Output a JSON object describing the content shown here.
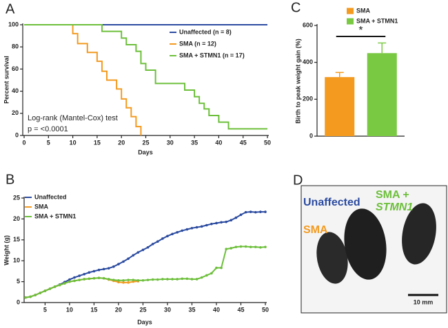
{
  "chart_data": [
    {
      "type": "line",
      "panel": "A",
      "step": true,
      "ylabel": "Percent survival",
      "xlabel": "Days",
      "annotations": [
        "Log-rank (Mantel-Cox) test",
        "p = <0.0001"
      ],
      "xlim": [
        0,
        50
      ],
      "xticks": [
        0,
        5,
        10,
        15,
        20,
        25,
        30,
        35,
        40,
        45,
        50
      ],
      "ylim": [
        0,
        100
      ],
      "yticks": [
        0,
        20,
        40,
        60,
        80,
        100
      ],
      "series": [
        {
          "name": "Unaffected (n = 8)",
          "color": "#2b4ba0",
          "x": [
            0,
            50
          ],
          "values": [
            100,
            100
          ]
        },
        {
          "name": "SMA (n = 12)",
          "color": "#f39a1f",
          "x": [
            0,
            10,
            10,
            11,
            11,
            13,
            13,
            15,
            15,
            16,
            16,
            17,
            17,
            19,
            19,
            20,
            20,
            21,
            21,
            22,
            22,
            23,
            23,
            24,
            24
          ],
          "values": [
            100,
            100,
            92,
            92,
            83,
            83,
            75,
            75,
            67,
            67,
            58,
            58,
            50,
            50,
            42,
            42,
            33,
            33,
            25,
            25,
            17,
            17,
            8,
            8,
            0
          ]
        },
        {
          "name": "SMA + STMN1 (n = 17)",
          "color": "#6cbf3a",
          "x": [
            0,
            16,
            16,
            20,
            20,
            21,
            21,
            23,
            23,
            24,
            24,
            25,
            25,
            27,
            27,
            33,
            33,
            35,
            35,
            36,
            36,
            37,
            37,
            38,
            38,
            40,
            40,
            42,
            42,
            50
          ],
          "values": [
            100,
            100,
            94,
            94,
            88,
            88,
            82,
            82,
            76,
            76,
            65,
            65,
            59,
            59,
            47,
            47,
            41,
            41,
            35,
            35,
            29,
            29,
            24,
            24,
            18,
            18,
            12,
            12,
            6,
            6
          ]
        }
      ]
    },
    {
      "type": "line",
      "panel": "B",
      "markers": true,
      "ylabel": "Weight (g)",
      "xlabel": "Days",
      "xlim": [
        1,
        50
      ],
      "xticks": [
        5,
        10,
        15,
        20,
        25,
        30,
        35,
        40,
        45,
        50
      ],
      "ylim": [
        0,
        25
      ],
      "yticks": [
        0,
        5,
        10,
        15,
        20,
        25
      ],
      "x": [
        1,
        2,
        3,
        4,
        5,
        6,
        7,
        8,
        9,
        10,
        11,
        12,
        13,
        14,
        15,
        16,
        17,
        18,
        19,
        20,
        21,
        22,
        23,
        24,
        25,
        26,
        27,
        28,
        29,
        30,
        31,
        32,
        33,
        34,
        35,
        36,
        37,
        38,
        39,
        40,
        41,
        42,
        43,
        44,
        45,
        46,
        47,
        48,
        49,
        50
      ],
      "series": [
        {
          "name": "Unaffected",
          "color": "#2b4ba0",
          "values": [
            1.2,
            1.4,
            1.8,
            2.3,
            2.8,
            3.3,
            3.8,
            4.3,
            4.9,
            5.5,
            6.0,
            6.4,
            6.8,
            7.2,
            7.5,
            7.8,
            8.0,
            8.2,
            8.6,
            9.2,
            9.8,
            10.5,
            11.3,
            12.0,
            12.6,
            13.2,
            14.0,
            14.6,
            15.3,
            15.9,
            16.4,
            16.8,
            17.2,
            17.5,
            17.8,
            18.0,
            18.2,
            18.5,
            18.8,
            19.0,
            19.2,
            19.3,
            19.7,
            20.3,
            21.0,
            21.6,
            21.7,
            21.6,
            21.7,
            21.7
          ]
        },
        {
          "name": "SMA",
          "color": "#f39a1f",
          "values": [
            1.2,
            1.4,
            1.8,
            2.3,
            2.8,
            3.3,
            3.8,
            4.2,
            4.6,
            5.0,
            5.2,
            5.4,
            5.6,
            5.7,
            5.8,
            5.9,
            5.8,
            5.5,
            5.2,
            4.9,
            4.8,
            4.8,
            5.0,
            5.1,
            null,
            null,
            null,
            null,
            null,
            null,
            null,
            null,
            null,
            null,
            null,
            null,
            null,
            null,
            null,
            null,
            null,
            null,
            null,
            null,
            null,
            null,
            null,
            null,
            null,
            null
          ]
        },
        {
          "name": "SMA + STMN1",
          "color": "#6cbf3a",
          "values": [
            1.2,
            1.4,
            1.8,
            2.3,
            2.8,
            3.3,
            3.8,
            4.2,
            4.6,
            5.0,
            5.2,
            5.4,
            5.6,
            5.7,
            5.8,
            5.9,
            5.8,
            5.6,
            5.4,
            5.3,
            5.3,
            5.4,
            5.4,
            5.3,
            5.3,
            5.4,
            5.5,
            5.5,
            5.6,
            5.6,
            5.6,
            5.6,
            5.7,
            5.7,
            5.6,
            5.6,
            6.0,
            6.5,
            7.0,
            8.3,
            8.3,
            12.8,
            13.0,
            13.3,
            13.4,
            13.4,
            13.3,
            13.3,
            13.2,
            13.3
          ]
        }
      ]
    },
    {
      "type": "bar",
      "panel": "C",
      "ylabel": "Birth to peak weight gain (%)",
      "annotation": "*",
      "ylim": [
        0,
        600
      ],
      "yticks": [
        0,
        200,
        400,
        600
      ],
      "series": [
        {
          "name": "SMA",
          "color": "#f39a1f",
          "values": [
            320
          ],
          "errors": [
            25
          ]
        },
        {
          "name": "SMA + STMN1",
          "color": "#7ac943",
          "values": [
            450
          ],
          "errors": [
            55
          ]
        }
      ]
    }
  ],
  "photo_panel": {
    "panel": "D",
    "labels": [
      "Unaffected",
      "SMA +",
      "STMN1",
      "SMA"
    ],
    "scale_bar": "10 mm"
  }
}
